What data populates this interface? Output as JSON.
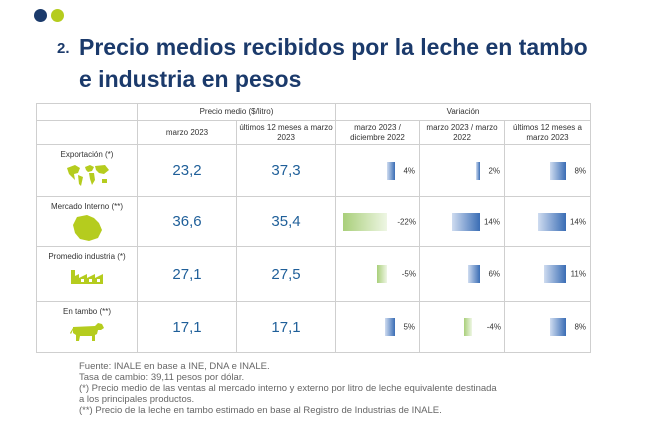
{
  "colors": {
    "navy": "#1b3a6b",
    "lime": "#b5cc1e",
    "bar_positive": "#3a6db5",
    "bar_negative": "#a9cf7a",
    "number": "#1f5f99"
  },
  "heading": {
    "number": "2.",
    "title": "Precio medios recibidos por la leche en tambo e industria en pesos"
  },
  "table": {
    "group_price": "Precio medio ($/litro)",
    "group_variation": "Variación",
    "col_price_1": "marzo 2023",
    "col_price_2": "últimos 12 meses a marzo 2023",
    "col_var_1": "marzo 2023 / diciembre 2022",
    "col_var_2": "marzo 2023 / marzo 2022",
    "col_var_3": "últimos 12 meses a marzo 2023",
    "rows": [
      {
        "label": "Exportación (*)",
        "icon": "world-map-icon",
        "price_1": "23,2",
        "price_2": "37,3",
        "v1": 4,
        "v1_text": "4%",
        "v2": 2,
        "v2_text": "2%",
        "v3": 8,
        "v3_text": "8%"
      },
      {
        "label": "Mercado Interno (**)",
        "icon": "uruguay-map-icon",
        "price_1": "36,6",
        "price_2": "35,4",
        "v1": -22,
        "v1_text": "-22%",
        "v2": 14,
        "v2_text": "14%",
        "v3": 14,
        "v3_text": "14%"
      },
      {
        "label": "Promedio industria (*)",
        "icon": "factory-icon",
        "price_1": "27,1",
        "price_2": "27,5",
        "v1": -5,
        "v1_text": "-5%",
        "v2": 6,
        "v2_text": "6%",
        "v3": 11,
        "v3_text": "11%"
      },
      {
        "label": "En tambo (**)",
        "icon": "cow-icon",
        "price_1": "17,1",
        "price_2": "17,1",
        "v1": 5,
        "v1_text": "5%",
        "v2": -4,
        "v2_text": "-4%",
        "v3": 8,
        "v3_text": "8%"
      }
    ]
  },
  "notes": [
    "Fuente: INALE en base a INE, DNA e INALE.",
    "Tasa de cambio: 39,11 pesos por dólar.",
    "(*) Precio medio de las ventas al mercado interno y externo por litro de leche equivalente destinada",
    "a los principales productos.",
    "(**) Precio de la leche en tambo estimado en base al Registro de Industrias de INALE."
  ]
}
